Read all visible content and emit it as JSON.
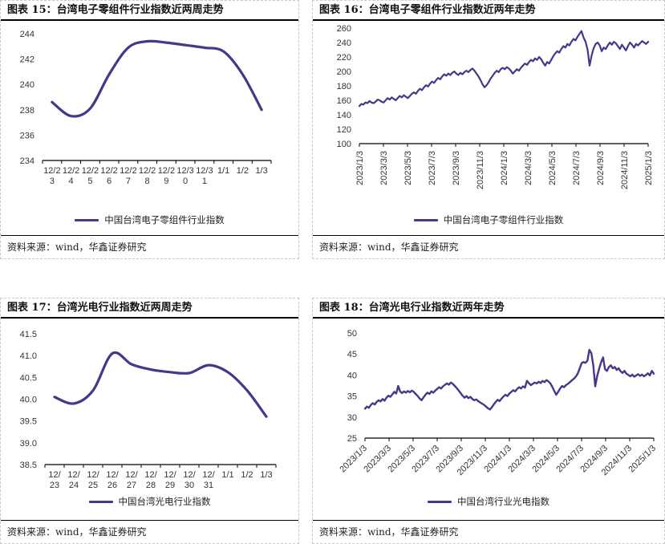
{
  "colors": {
    "line": "#4B3589",
    "axis": "#000000",
    "tick_label": "#333333",
    "panel_border": "#c9c9c9",
    "title_text": "#111111"
  },
  "chart_data": [
    {
      "id": "fig15",
      "type": "line",
      "title": "图表 15：台湾电子零组件行业指数近两周走势",
      "legend": "中国台湾电子零组件行业指数",
      "source": "资料来源：wind，华鑫证券研究",
      "x_mode": "category",
      "x_label_style": "wrap",
      "wrap_chars": 4,
      "x_tick_labels": [
        "12/23",
        "12/24",
        "12/25",
        "12/26",
        "12/27",
        "12/28",
        "12/29",
        "12/30",
        "12/31",
        "1/1",
        "1/2",
        "1/3"
      ],
      "values": [
        238.6,
        237.5,
        238.1,
        240.8,
        242.9,
        243.4,
        243.3,
        243.1,
        242.9,
        242.6,
        240.8,
        238.0
      ],
      "ylim": [
        234,
        244
      ],
      "ytick_step": 2,
      "y_decimals": 0,
      "smooth": true,
      "grid": false,
      "legend_position": "bottom"
    },
    {
      "id": "fig16",
      "type": "line",
      "title": "图表 16：台湾电子零组件行业指数近两年走势",
      "legend": "中国台湾电子零组件行业指数",
      "source": "资料来源：wind，华鑫证券研究",
      "x_mode": "timeline",
      "x_label_style": "vertical",
      "x_tick_labels": [
        "2023/1/3",
        "2023/3/3",
        "2023/5/3",
        "2023/7/3",
        "2023/9/3",
        "2023/11/3",
        "2024/1/3",
        "2024/3/3",
        "2024/5/3",
        "2024/7/3",
        "2024/9/3",
        "2024/11/3",
        "2025/1/3"
      ],
      "values": [
        152,
        155,
        154,
        157,
        156,
        159,
        157,
        156,
        158,
        161,
        160,
        158,
        157,
        160,
        163,
        161,
        164,
        162,
        160,
        163,
        166,
        164,
        167,
        165,
        163,
        166,
        169,
        171,
        169,
        173,
        176,
        174,
        178,
        181,
        179,
        183,
        186,
        184,
        188,
        191,
        189,
        193,
        196,
        194,
        197,
        195,
        198,
        200,
        197,
        195,
        198,
        196,
        199,
        201,
        199,
        202,
        204,
        201,
        197,
        193,
        188,
        182,
        178,
        181,
        185,
        190,
        194,
        198,
        201,
        199,
        203,
        205,
        203,
        206,
        204,
        201,
        197,
        200,
        203,
        201,
        205,
        208,
        211,
        209,
        213,
        216,
        214,
        218,
        216,
        220,
        217,
        212,
        208,
        213,
        211,
        216,
        221,
        225,
        228,
        226,
        231,
        235,
        233,
        238,
        236,
        241,
        245,
        243,
        248,
        252,
        256,
        247,
        241,
        230,
        208,
        222,
        232,
        238,
        240,
        236,
        228,
        233,
        231,
        236,
        240,
        237,
        241,
        239,
        235,
        231,
        237,
        233,
        229,
        235,
        240,
        237,
        233,
        238,
        236,
        239,
        242,
        240,
        238,
        241
      ],
      "ylim": [
        100,
        260
      ],
      "ytick_step": 20,
      "y_decimals": 0,
      "smooth": false,
      "grid": false,
      "legend_position": "bottom"
    },
    {
      "id": "fig17",
      "type": "line",
      "title": "图表 17：台湾光电行业指数近两周走势",
      "legend": "中国台湾光电行业指数",
      "source": "资料来源：wind，华鑫证券研究",
      "x_mode": "category",
      "x_label_style": "wrap",
      "wrap_chars": 3,
      "x_tick_labels": [
        "12/23",
        "12/24",
        "12/25",
        "12/26",
        "12/27",
        "12/28",
        "12/29",
        "12/30",
        "12/31",
        "1/1",
        "1/2",
        "1/3"
      ],
      "values": [
        40.05,
        39.9,
        40.2,
        41.05,
        40.8,
        40.68,
        40.62,
        40.6,
        40.78,
        40.62,
        40.2,
        39.6
      ],
      "ylim": [
        38.5,
        41.5
      ],
      "ytick_step": 0.5,
      "y_decimals": 1,
      "smooth": true,
      "grid": false,
      "legend_position": "bottom"
    },
    {
      "id": "fig18",
      "type": "line",
      "title": "图表 18：台湾光电行业指数近两年走势",
      "legend": "中国台湾行业光电指数",
      "source": "资料来源：wind，华鑫证券研究",
      "x_mode": "timeline",
      "x_label_style": "diagonal",
      "x_tick_labels": [
        "2023/1/3",
        "2023/3/3",
        "2023/5/3",
        "2023/7/3",
        "2023/9/3",
        "2023/11/3",
        "2024/1/3",
        "2024/3/3",
        "2024/5/3",
        "2024/7/3",
        "2024/9/3",
        "2024/11/3",
        "2025/1/3"
      ],
      "values": [
        32.0,
        32.5,
        32.2,
        32.9,
        33.3,
        33.0,
        33.6,
        34.0,
        33.7,
        34.3,
        33.9,
        34.6,
        35.1,
        34.8,
        35.4,
        36.0,
        35.6,
        37.4,
        36.1,
        35.7,
        36.1,
        35.8,
        36.2,
        35.9,
        36.3,
        36.0,
        35.5,
        35.0,
        34.4,
        34.0,
        34.7,
        35.3,
        35.8,
        35.5,
        36.1,
        35.8,
        36.3,
        36.7,
        37.1,
        36.8,
        37.3,
        37.7,
        38.0,
        37.7,
        38.2,
        37.9,
        37.4,
        36.9,
        36.3,
        35.7,
        35.1,
        34.6,
        35.0,
        34.5,
        34.8,
        34.3,
        34.0,
        34.2,
        33.8,
        33.5,
        33.2,
        32.9,
        32.5,
        32.1,
        31.8,
        32.3,
        33.0,
        33.6,
        34.1,
        33.8,
        34.4,
        34.9,
        35.3,
        35.0,
        35.6,
        36.0,
        36.4,
        36.1,
        36.7,
        37.1,
        36.8,
        37.3,
        37.0,
        38.6,
        38.1,
        37.6,
        37.9,
        38.2,
        38.0,
        38.4,
        38.1,
        38.6,
        38.3,
        38.8,
        38.5,
        38.0,
        37.2,
        36.2,
        35.3,
        36.0,
        36.8,
        37.4,
        37.1,
        37.6,
        37.9,
        38.3,
        38.7,
        39.1,
        39.6,
        40.3,
        41.5,
        42.8,
        43.1,
        42.9,
        43.4,
        46.0,
        45.2,
        42.3,
        37.3,
        39.8,
        41.5,
        43.0,
        44.2,
        41.4,
        41.0,
        41.9,
        42.3,
        41.6,
        41.9,
        41.2,
        41.6,
        40.9,
        40.5,
        41.0,
        40.3,
        40.0,
        39.7,
        40.1,
        39.6,
        39.9,
        40.2,
        39.8,
        40.1,
        39.7,
        40.0,
        40.4,
        39.9,
        41.0,
        40.3
      ],
      "ylim": [
        25,
        50
      ],
      "ytick_step": 5,
      "y_decimals": 0,
      "smooth": false,
      "grid": false,
      "legend_position": "bottom"
    }
  ]
}
